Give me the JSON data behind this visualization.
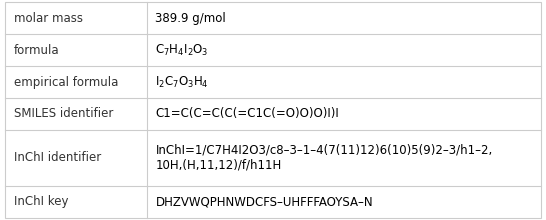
{
  "rows": [
    {
      "label": "molar mass",
      "value": "389.9 g/mol"
    },
    {
      "label": "formula",
      "value": "C$_7$H$_4$I$_2$O$_3$"
    },
    {
      "label": "empirical formula",
      "value": "I$_2$C$_7$O$_3$H$_4$"
    },
    {
      "label": "SMILES identifier",
      "value": "C1=C(C=C(C(=C1C(=O)O)O)I)I"
    },
    {
      "label": "InChI identifier",
      "value": "InChI=1/C7H4I2O3/c8–3–1–4(7(11)12)6(10)5(9)2–3/h1–2,\n10H,(H,11,12)/f/h11H"
    },
    {
      "label": "InChI key",
      "value": "DHZVWQPHNWDCFS–UHFFFAOYSA–N"
    }
  ],
  "col_split": 0.265,
  "background_color": "#ffffff",
  "border_color": "#cccccc",
  "label_color": "#333333",
  "value_color": "#000000",
  "label_fontsize": 8.5,
  "value_fontsize": 8.5,
  "row_heights": [
    1,
    1,
    1,
    1,
    1.75,
    1
  ],
  "fig_width": 5.46,
  "fig_height": 2.2,
  "dpi": 100
}
